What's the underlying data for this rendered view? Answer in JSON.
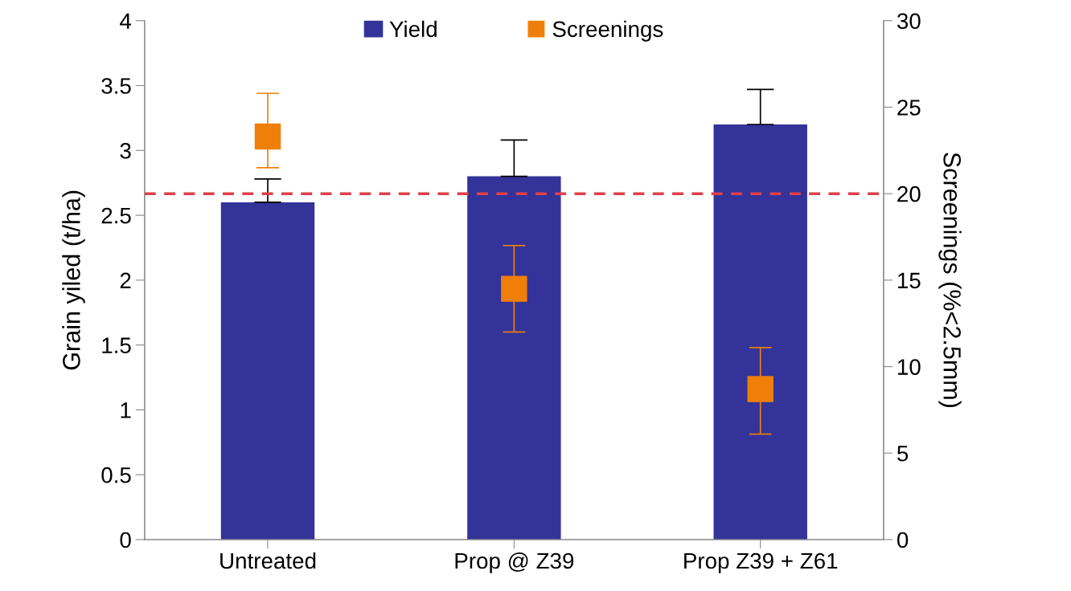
{
  "chart_data": {
    "type": "bar",
    "ylabel": "Grain yiled (t/ha)",
    "y2label": "Screenings (%<2.5mm)",
    "categories": [
      "Untreated",
      "Prop @ Z39",
      "Prop Z39 + Z61"
    ],
    "series": [
      {
        "name": "Yield",
        "color": "#333399",
        "values": [
          2.6,
          2.8,
          3.2
        ],
        "errors": [
          [
            2.6,
            2.78
          ],
          [
            2.8,
            3.08
          ],
          [
            3.2,
            3.47
          ]
        ]
      },
      {
        "name": "Screenings",
        "type": "scatter",
        "axis": "y2",
        "color": "#f07f09",
        "marker": "square",
        "values": [
          23.3,
          14.5,
          8.7
        ],
        "errors": [
          [
            21.5,
            25.8
          ],
          [
            12.0,
            17.0
          ],
          [
            6.1,
            11.1
          ]
        ]
      }
    ],
    "ylim": [
      0,
      4
    ],
    "yticks": [
      0,
      0.5,
      1,
      1.5,
      2,
      2.5,
      3,
      3.5,
      4
    ],
    "y2lim": [
      0,
      30
    ],
    "y2ticks": [
      0,
      5,
      10,
      15,
      20,
      25,
      30
    ],
    "ref_lines": [
      {
        "axis": "y2",
        "value": 20,
        "color": "#e0404a",
        "line_style": "dashed"
      }
    ],
    "grid": false,
    "legend": "top"
  }
}
